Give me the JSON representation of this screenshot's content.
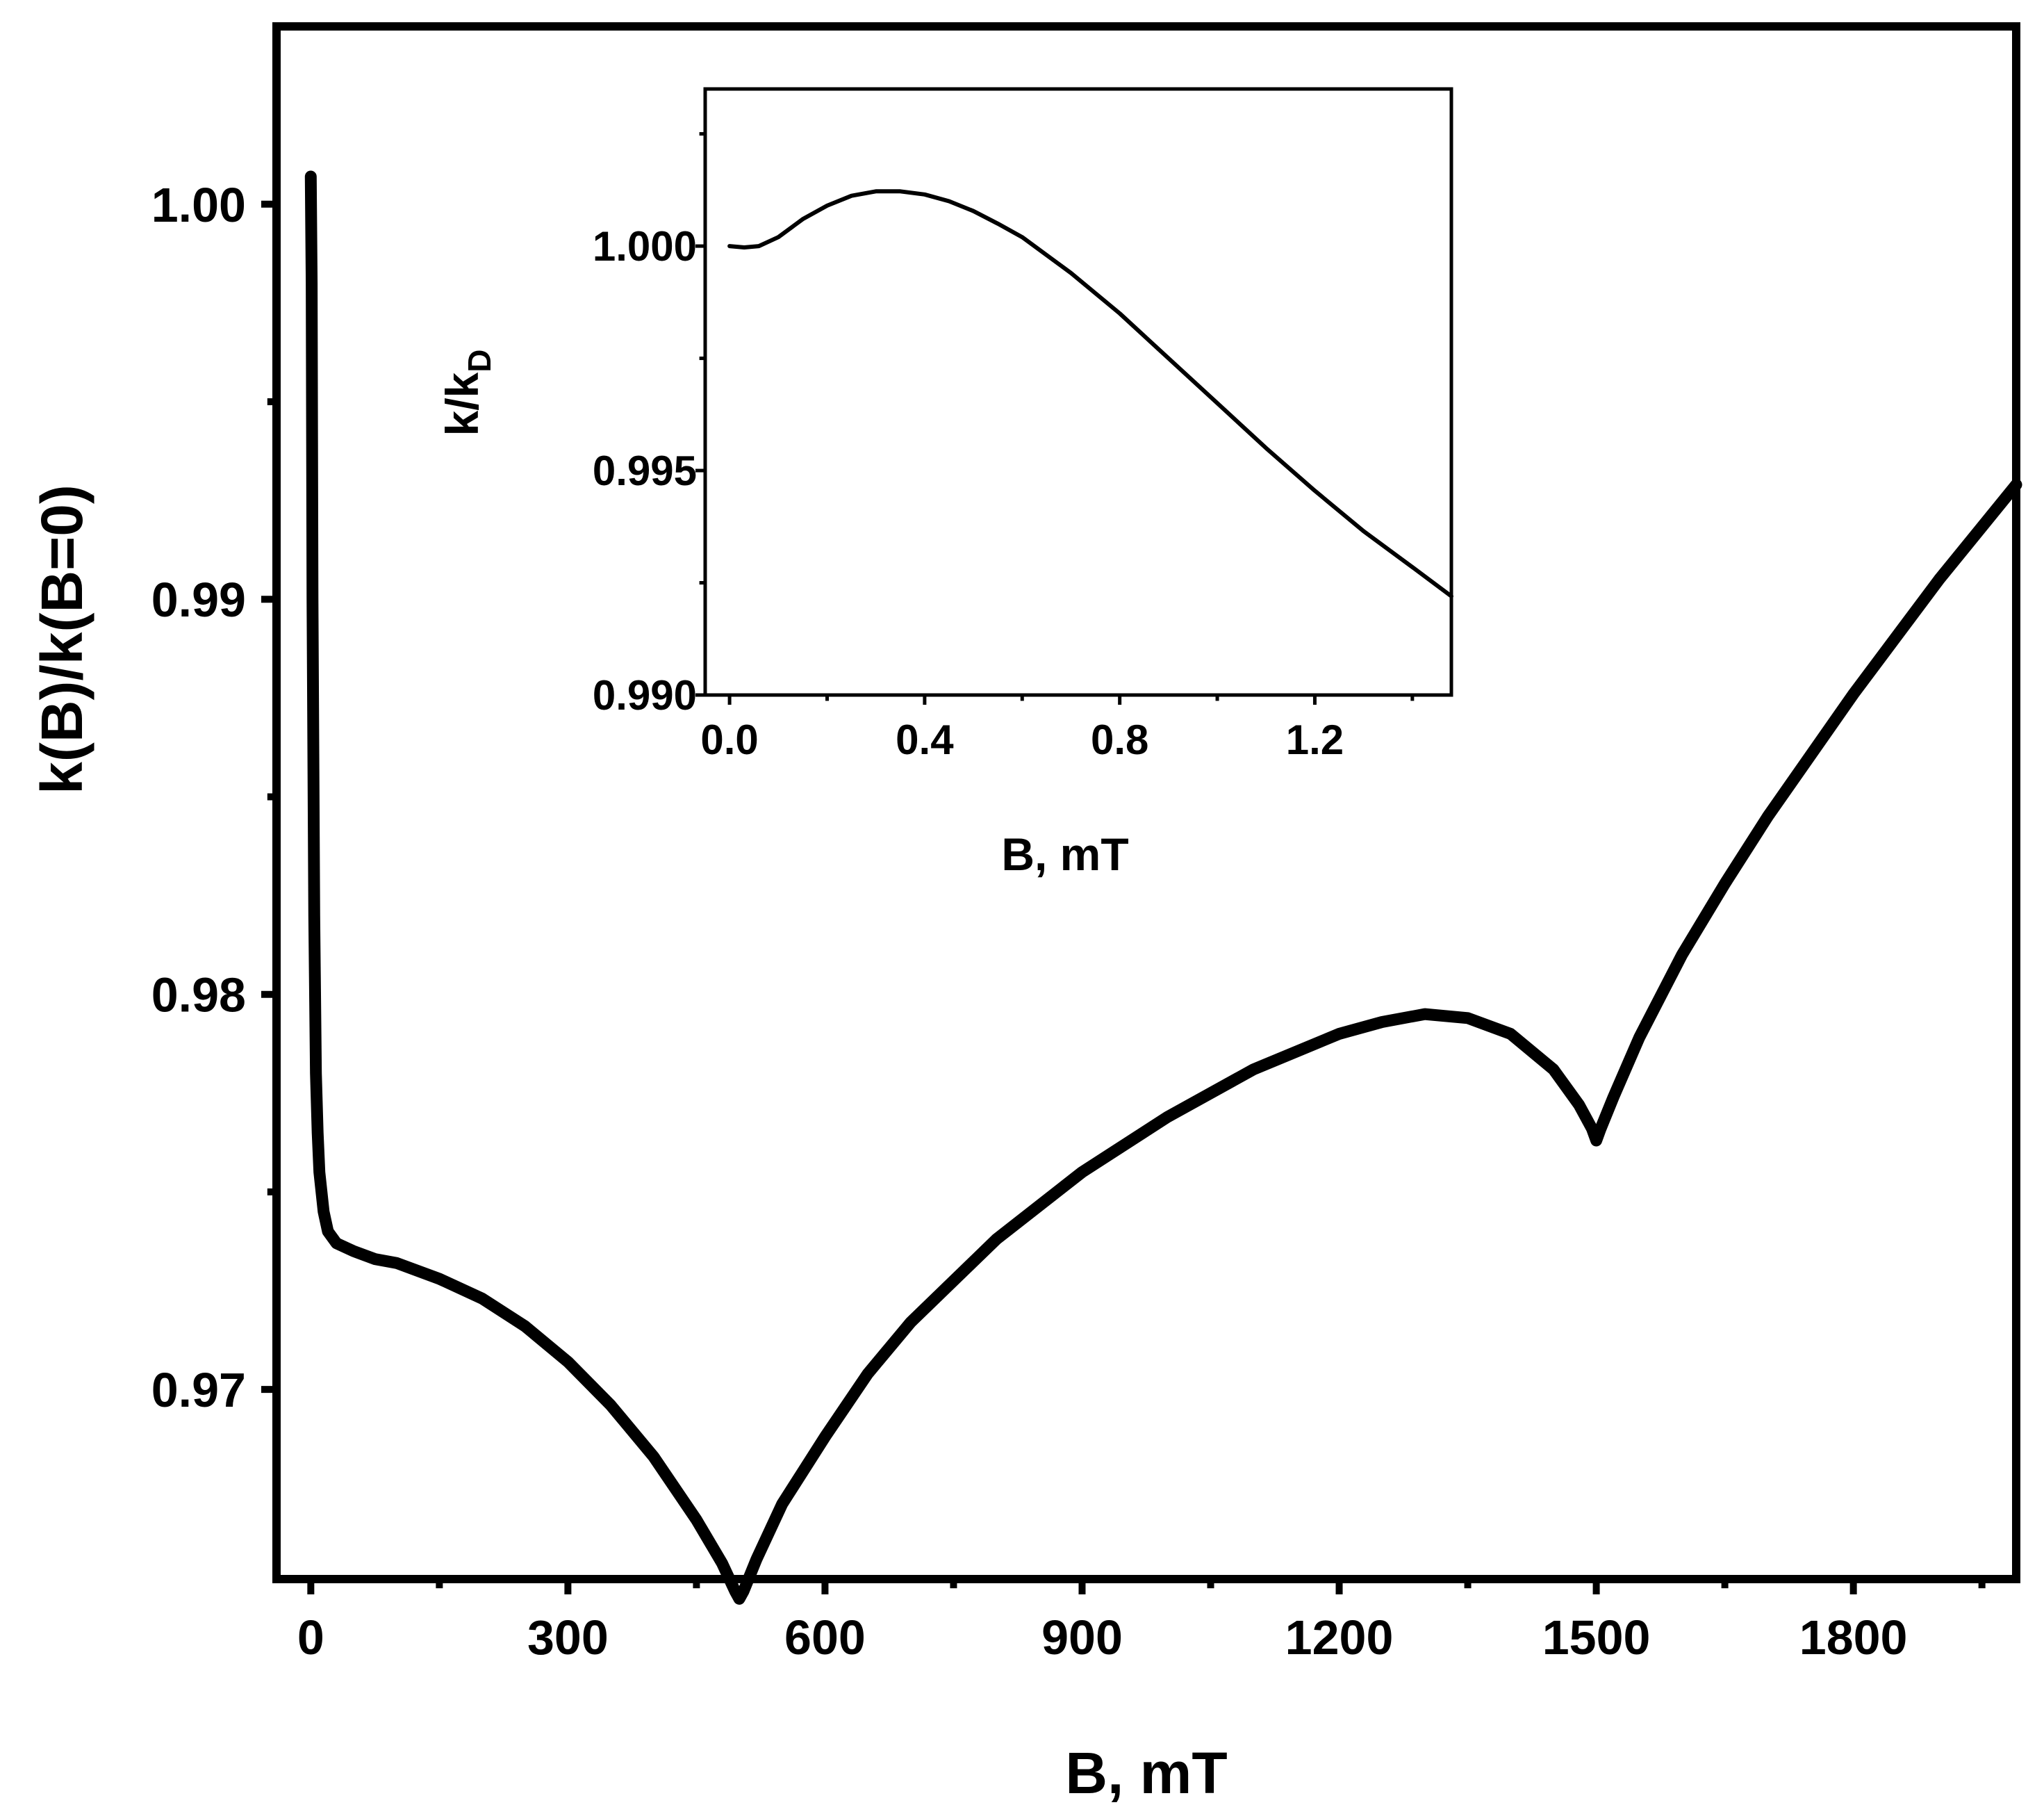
{
  "chart_data": [
    {
      "type": "line",
      "xlabel": "B, mT",
      "ylabel": "k(B)/k(B=0)",
      "xlim": [
        -40,
        1990
      ],
      "ylim": [
        0.9652,
        1.0045
      ],
      "xticks": [
        0,
        300,
        600,
        900,
        1200,
        1500,
        1800
      ],
      "xtick_labels": [
        "0",
        "300",
        "600",
        "900",
        "1200",
        "1500",
        "1800"
      ],
      "yticks": [
        0.97,
        0.98,
        0.99,
        1.0
      ],
      "ytick_labels": [
        "0.97",
        "0.98",
        "0.99",
        "1.00"
      ],
      "grid": false,
      "series": [
        {
          "x": [
            0,
            1,
            2,
            4,
            6,
            8,
            10,
            15,
            20,
            30,
            50,
            75,
            100,
            150,
            200,
            250,
            300,
            350,
            400,
            450,
            480,
            495,
            500,
            505,
            520,
            550,
            600,
            650,
            700,
            800,
            900,
            1000,
            1100,
            1200,
            1250,
            1300,
            1350,
            1400,
            1450,
            1480,
            1495,
            1500,
            1505,
            1520,
            1550,
            1600,
            1650,
            1700,
            1800,
            1900,
            1990
          ],
          "y": [
            1.0007,
            0.998,
            0.99,
            0.982,
            0.978,
            0.9765,
            0.9755,
            0.9745,
            0.974,
            0.9737,
            0.9735,
            0.9733,
            0.9732,
            0.9728,
            0.9723,
            0.9716,
            0.9707,
            0.9696,
            0.9683,
            0.9667,
            0.9656,
            0.9649,
            0.9647,
            0.9649,
            0.9657,
            0.9671,
            0.9688,
            0.9704,
            0.9717,
            0.9738,
            0.9755,
            0.9769,
            0.9781,
            0.979,
            0.9793,
            0.9795,
            0.9794,
            0.979,
            0.9781,
            0.9772,
            0.9766,
            0.9763,
            0.9766,
            0.9774,
            0.9789,
            0.981,
            0.9828,
            0.9845,
            0.9876,
            0.9905,
            0.9929
          ]
        }
      ]
    },
    {
      "type": "line",
      "xlabel": "B, mT",
      "ylabel": "k/k",
      "ylabel_sub": "D",
      "xlim": [
        -0.05,
        1.48
      ],
      "ylim": [
        0.99,
        1.0035
      ],
      "xticks": [
        0.0,
        0.4,
        0.8,
        1.2
      ],
      "xtick_labels": [
        "0.0",
        "0.4",
        "0.8",
        "1.2"
      ],
      "yticks": [
        0.99,
        0.995,
        1.0
      ],
      "ytick_labels": [
        "0.990",
        "0.995",
        "1.000"
      ],
      "grid": false,
      "series": [
        {
          "x": [
            0.0,
            0.03,
            0.06,
            0.1,
            0.15,
            0.2,
            0.25,
            0.3,
            0.35,
            0.4,
            0.45,
            0.5,
            0.55,
            0.6,
            0.7,
            0.8,
            0.9,
            1.0,
            1.1,
            1.2,
            1.3,
            1.4,
            1.48
          ],
          "y": [
            1.0,
            0.99997,
            1.0,
            1.0002,
            1.0006,
            1.0009,
            1.00112,
            1.00122,
            1.00122,
            1.00115,
            1.001,
            1.00078,
            1.0005,
            1.0002,
            0.9994,
            0.9985,
            0.9975,
            0.9965,
            0.9955,
            0.99455,
            0.99365,
            0.99285,
            0.9922
          ]
        }
      ]
    }
  ]
}
